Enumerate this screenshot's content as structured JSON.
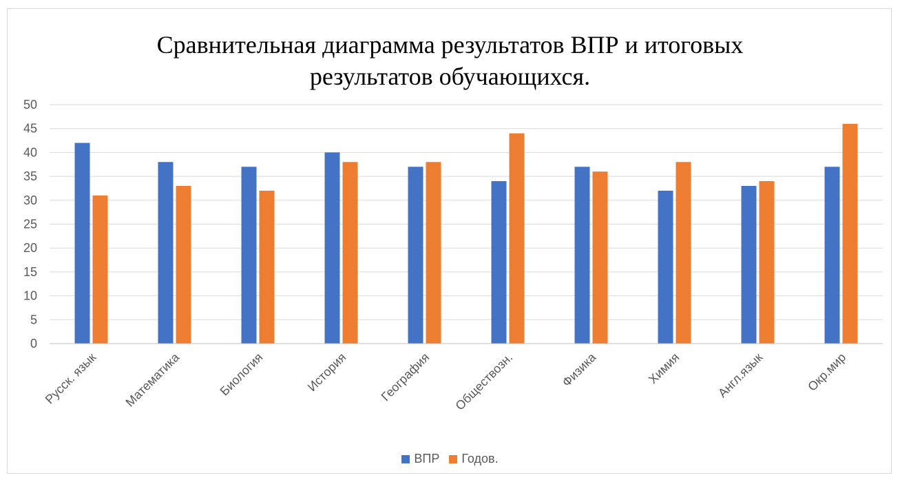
{
  "chart_data": {
    "type": "bar",
    "title_lines": [
      "Сравнительная диаграмма результатов ВПР и итоговых",
      "результатов обучающихся."
    ],
    "categories": [
      "Русск. язык",
      "Математика",
      "Биология",
      "История",
      "География",
      "Обществозн.",
      "Физика",
      "Химия",
      "Англ.язык",
      "Окр.мир"
    ],
    "series": [
      {
        "name": "ВПР",
        "color": "#4472C4",
        "values": [
          42,
          38,
          37,
          40,
          37,
          34,
          37,
          32,
          33,
          37
        ]
      },
      {
        "name": "Годов.",
        "color": "#ED7D31",
        "values": [
          31,
          33,
          32,
          38,
          38,
          44,
          36,
          38,
          34,
          46
        ]
      }
    ],
    "ylim": [
      0,
      50
    ],
    "yticks": [
      0,
      5,
      10,
      15,
      20,
      25,
      30,
      35,
      40,
      45,
      50
    ],
    "grid": true,
    "legend_position": "bottom"
  }
}
